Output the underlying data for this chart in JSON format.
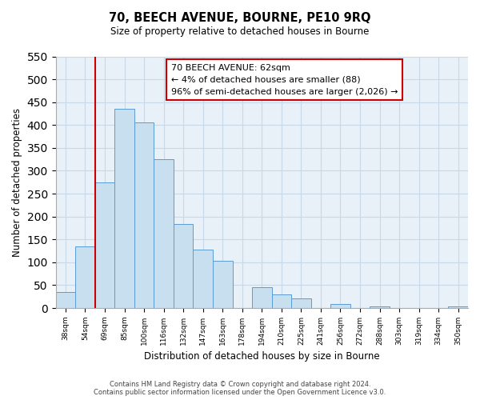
{
  "title": "70, BEECH AVENUE, BOURNE, PE10 9RQ",
  "subtitle": "Size of property relative to detached houses in Bourne",
  "xlabel": "Distribution of detached houses by size in Bourne",
  "ylabel": "Number of detached properties",
  "bin_labels": [
    "38sqm",
    "54sqm",
    "69sqm",
    "85sqm",
    "100sqm",
    "116sqm",
    "132sqm",
    "147sqm",
    "163sqm",
    "178sqm",
    "194sqm",
    "210sqm",
    "225sqm",
    "241sqm",
    "256sqm",
    "272sqm",
    "288sqm",
    "303sqm",
    "319sqm",
    "334sqm",
    "350sqm"
  ],
  "bar_values": [
    35,
    135,
    275,
    435,
    405,
    325,
    183,
    127,
    104,
    0,
    46,
    30,
    21,
    0,
    8,
    0,
    4,
    0,
    0,
    0,
    4
  ],
  "bar_color": "#c8dff0",
  "bar_edge_color": "#5b9bd5",
  "plot_bg_color": "#e8f0f8",
  "vline_color": "#cc0000",
  "vline_x_index": 1.5,
  "annotation_text": "70 BEECH AVENUE: 62sqm\n← 4% of detached houses are smaller (88)\n96% of semi-detached houses are larger (2,026) →",
  "annotation_box_color": "#ffffff",
  "annotation_box_edge": "#cc0000",
  "ylim": [
    0,
    550
  ],
  "yticks": [
    0,
    50,
    100,
    150,
    200,
    250,
    300,
    350,
    400,
    450,
    500,
    550
  ],
  "footer_line1": "Contains HM Land Registry data © Crown copyright and database right 2024.",
  "footer_line2": "Contains public sector information licensed under the Open Government Licence v3.0.",
  "background_color": "#ffffff",
  "grid_color": "#c8d8e8"
}
